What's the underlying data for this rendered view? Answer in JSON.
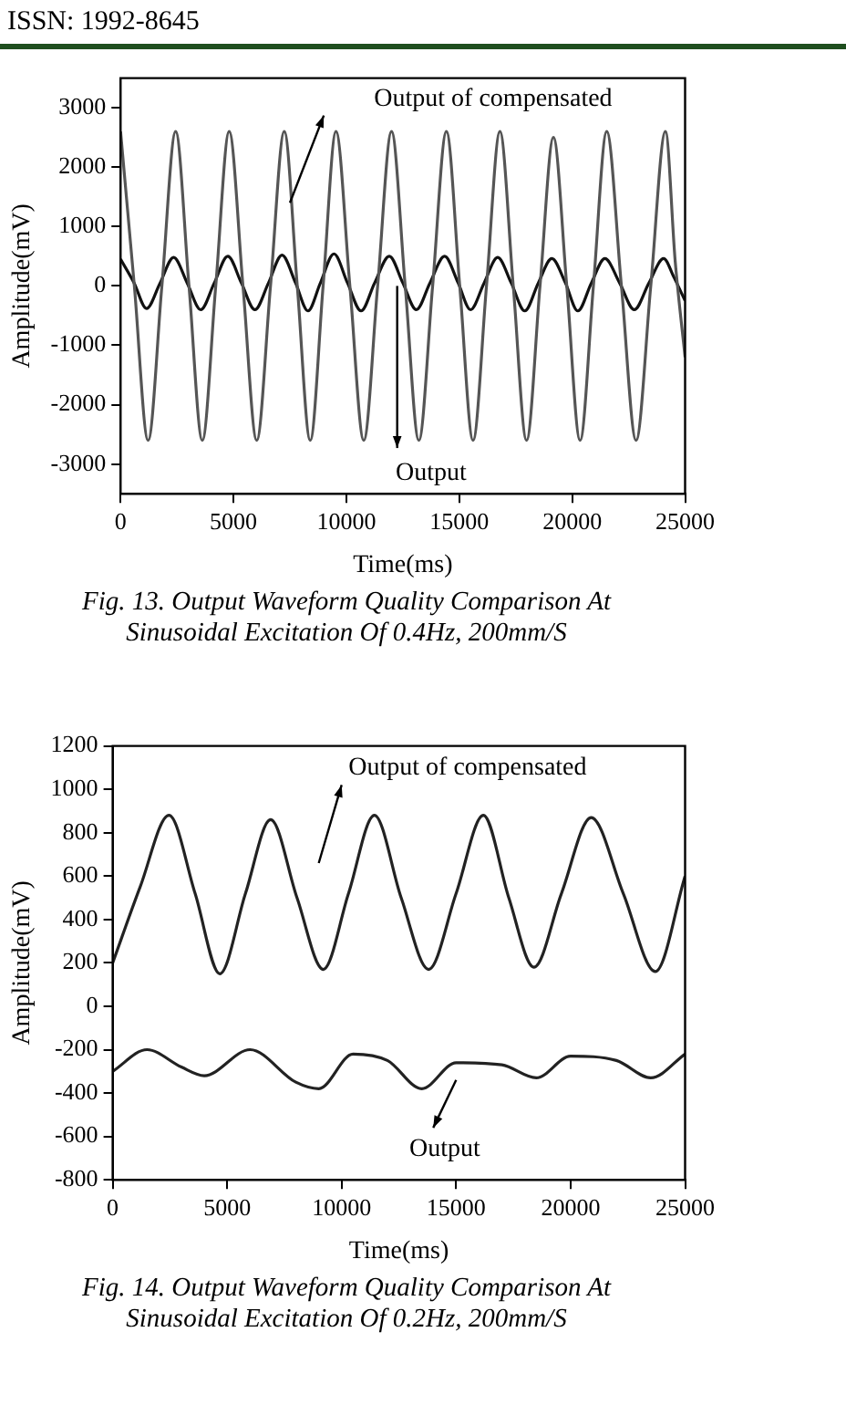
{
  "chart_data": [
    {
      "type": "line",
      "title": "Fig. 13. Output Waveform Quality Comparison At Sinusoidal Excitation Of 0.4Hz, 200mm/S",
      "xlabel": "Time(ms)",
      "ylabel": "Amplitude(mV)",
      "xlim": [
        0,
        25000
      ],
      "xticks": [
        0,
        5000,
        10000,
        15000,
        20000,
        25000
      ],
      "ylim": [
        -3500,
        3500
      ],
      "yticks": [
        -3000,
        -2000,
        -1000,
        0,
        1000,
        2000,
        3000
      ],
      "grid": false,
      "legend": false,
      "marker": "none",
      "line_style": "solid",
      "annotations": [
        "Output of compensated",
        "Output"
      ],
      "series": [
        {
          "color": "#555555",
          "x": [
            0,
            610,
            1220,
            1830,
            2440,
            3030,
            3620,
            4215,
            4810,
            5420,
            6030,
            6640,
            7250,
            7825,
            8400,
            8970,
            9540,
            10155,
            10770,
            11385,
            12000,
            12605,
            13210,
            13820,
            14430,
            15020,
            15610,
            16205,
            16800,
            17390,
            17980,
            18575,
            19170,
            19760,
            20350,
            20940,
            21530,
            22180,
            22830,
            23480,
            24130,
            24565,
            25000
          ],
          "values": [
            2600,
            0,
            -2600,
            0,
            2600,
            0,
            -2600,
            0,
            2600,
            0,
            -2600,
            0,
            2600,
            0,
            -2600,
            0,
            2600,
            0,
            -2600,
            0,
            2600,
            0,
            -2600,
            0,
            2600,
            0,
            -2600,
            0,
            2600,
            0,
            -2600,
            0,
            2500,
            0,
            -2600,
            0,
            2600,
            0,
            -2600,
            0,
            2600,
            400,
            -1200
          ]
        },
        {
          "color": "#111111",
          "x": [
            0,
            600,
            1150,
            1750,
            2350,
            2950,
            3550,
            4150,
            4750,
            5350,
            5950,
            6550,
            7150,
            7750,
            8300,
            8850,
            9450,
            10050,
            10650,
            11250,
            11900,
            12500,
            13100,
            13700,
            14350,
            14950,
            15500,
            16100,
            16700,
            17300,
            17900,
            18500,
            19100,
            19700,
            20250,
            20850,
            21450,
            22100,
            22750,
            23400,
            24050,
            24500,
            25000
          ],
          "values": [
            450,
            50,
            -380,
            50,
            480,
            50,
            -400,
            50,
            500,
            50,
            -400,
            50,
            520,
            50,
            -420,
            50,
            540,
            50,
            -420,
            50,
            500,
            50,
            -400,
            50,
            500,
            50,
            -400,
            50,
            480,
            50,
            -420,
            50,
            460,
            50,
            -420,
            50,
            460,
            50,
            -400,
            50,
            460,
            150,
            -250
          ]
        }
      ]
    },
    {
      "type": "line",
      "title": "Fig. 14. Output Waveform Quality Comparison At Sinusoidal Excitation Of 0.2Hz, 200mm/S",
      "xlabel": "Time(ms)",
      "ylabel": "Amplitude(mV)",
      "xlim": [
        0,
        25000
      ],
      "xticks": [
        0,
        5000,
        10000,
        15000,
        20000,
        25000
      ],
      "ylim": [
        -800,
        1200
      ],
      "yticks": [
        -800,
        -600,
        -400,
        -200,
        0,
        200,
        400,
        600,
        800,
        1000,
        1200
      ],
      "grid": false,
      "legend": false,
      "marker": "none",
      "line_style": "solid",
      "annotations": [
        "Output of compensated",
        "Output"
      ],
      "series": [
        {
          "color": "#222222",
          "x": [
            0,
            1200,
            2460,
            3600,
            4680,
            5800,
            6900,
            8050,
            9200,
            10300,
            11430,
            12600,
            13800,
            15000,
            16190,
            17300,
            18400,
            19600,
            20900,
            22300,
            23700,
            25000
          ],
          "values": [
            200,
            550,
            880,
            520,
            150,
            520,
            860,
            500,
            170,
            520,
            880,
            500,
            170,
            520,
            880,
            500,
            180,
            520,
            870,
            520,
            160,
            600
          ]
        },
        {
          "color": "#222222",
          "x": [
            0,
            1500,
            3000,
            4000,
            6000,
            8000,
            9000,
            10500,
            12000,
            13500,
            15000,
            17000,
            18500,
            20000,
            22000,
            23500,
            25000
          ],
          "values": [
            -300,
            -200,
            -280,
            -320,
            -200,
            -350,
            -380,
            -220,
            -250,
            -380,
            -260,
            -270,
            -330,
            -230,
            -250,
            -330,
            -220
          ]
        }
      ]
    },
    {
      "type": "other",
      "annotations": [
        "ISSN: 1992-8645"
      ]
    }
  ]
}
